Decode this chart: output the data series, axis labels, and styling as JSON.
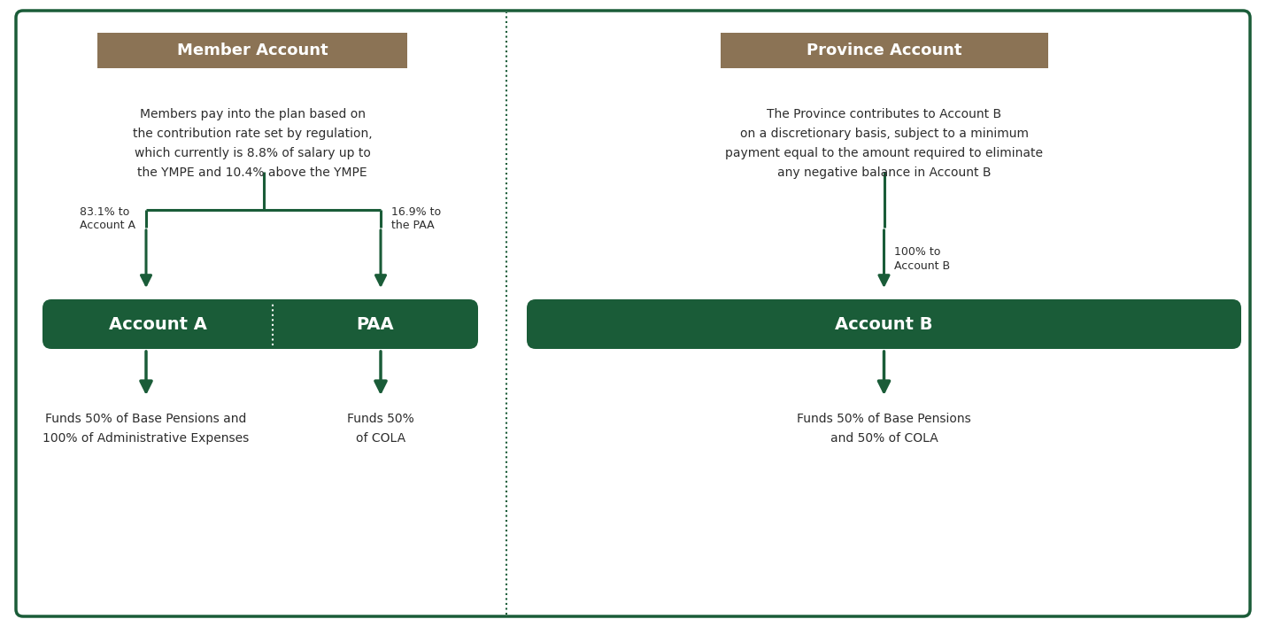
{
  "bg_color": "#ffffff",
  "border_color": "#1a5c38",
  "divider_color": "#1a5c38",
  "dark_green": "#1a5c38",
  "gold": "#8b7355",
  "text_dark": "#2d2d2d",
  "title_left": "Member Account",
  "title_right": "Province Account",
  "desc_left": "Members pay into the plan based on\nthe contribution rate set by regulation,\nwhich currently is 8.8% of salary up to\nthe YMPE and 10.4% above the YMPE",
  "desc_right": "The Province contributes to Account B\non a discretionary basis, subject to a minimum\npayment equal to the amount required to eliminate\nany negative balance in Account B",
  "label_acct_a": "83.1% to\nAccount A",
  "label_paa": "16.9% to\nthe PAA",
  "label_acct_b": "100% to\nAccount B",
  "box_acct_a": "Account A",
  "box_paa": "PAA",
  "box_acct_b": "Account B",
  "bottom_acct_a": "Funds 50% of Base Pensions and\n100% of Administrative Expenses",
  "bottom_paa": "Funds 50%\nof COLA",
  "bottom_acct_b": "Funds 50% of Base Pensions\nand 50% of COLA",
  "fig_w": 14.3,
  "fig_h": 7.08,
  "dpi": 100
}
